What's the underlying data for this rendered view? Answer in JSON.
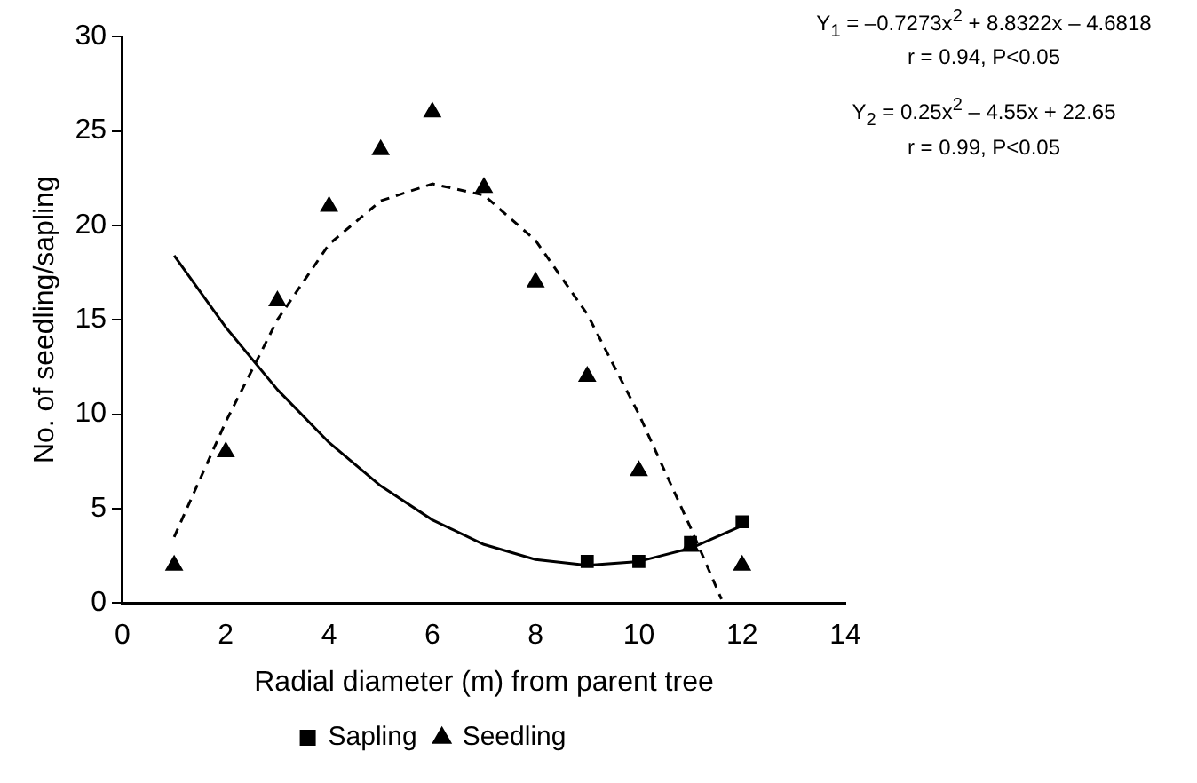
{
  "chart_data": {
    "type": "scatter",
    "xlabel": "Radial diameter (m) from parent tree",
    "ylabel": "No. of seedling/sapling",
    "xlim": [
      0,
      14
    ],
    "xticks": [
      0,
      2,
      4,
      6,
      8,
      10,
      12,
      14
    ],
    "ylim": [
      0,
      30
    ],
    "yticks": [
      0,
      5,
      10,
      15,
      20,
      25,
      30
    ],
    "grid": false,
    "legend": "bottom",
    "series": [
      {
        "name": "Seedling",
        "marker": "triangle",
        "color": "#000000",
        "x": [
          1,
          2,
          3,
          4,
          5,
          6,
          7,
          8,
          9,
          10,
          11,
          12
        ],
        "values": [
          2,
          8,
          16,
          21,
          24,
          26,
          22,
          17,
          12,
          7,
          3,
          2
        ]
      },
      {
        "name": "Sapling",
        "marker": "square",
        "color": "#000000",
        "x": [
          9,
          10,
          11,
          12
        ],
        "values": [
          2.2,
          2.2,
          3.2,
          4.3
        ]
      },
      {
        "type": "line",
        "marker": "none",
        "line_style": "dashed",
        "color": "#000000",
        "x": [
          1,
          2,
          3,
          4,
          5,
          6,
          7,
          8,
          9,
          10,
          11,
          11.6
        ],
        "values": [
          3.5,
          9.6,
          15,
          19,
          21.3,
          22.2,
          21.6,
          19.2,
          15.3,
          10,
          4,
          0.2
        ]
      },
      {
        "type": "line",
        "marker": "none",
        "line_style": "solid",
        "color": "#000000",
        "x": [
          1,
          2,
          3,
          4,
          5,
          6,
          7,
          8,
          9,
          10,
          11,
          12
        ],
        "values": [
          18.4,
          14.6,
          11.3,
          8.5,
          6.2,
          4.4,
          3.1,
          2.3,
          2,
          2.2,
          2.9,
          4.1
        ]
      }
    ],
    "annotations": [
      "Y$_{1}$ = –0.7273x$^{2}$ + 8.8322x – 4.6818",
      "r = 0.94, P<0.05",
      "Y$_{2}$ = 0.25x$^{2}$ – 4.55x + 22.65",
      "r = 0.99, P<0.05"
    ]
  }
}
